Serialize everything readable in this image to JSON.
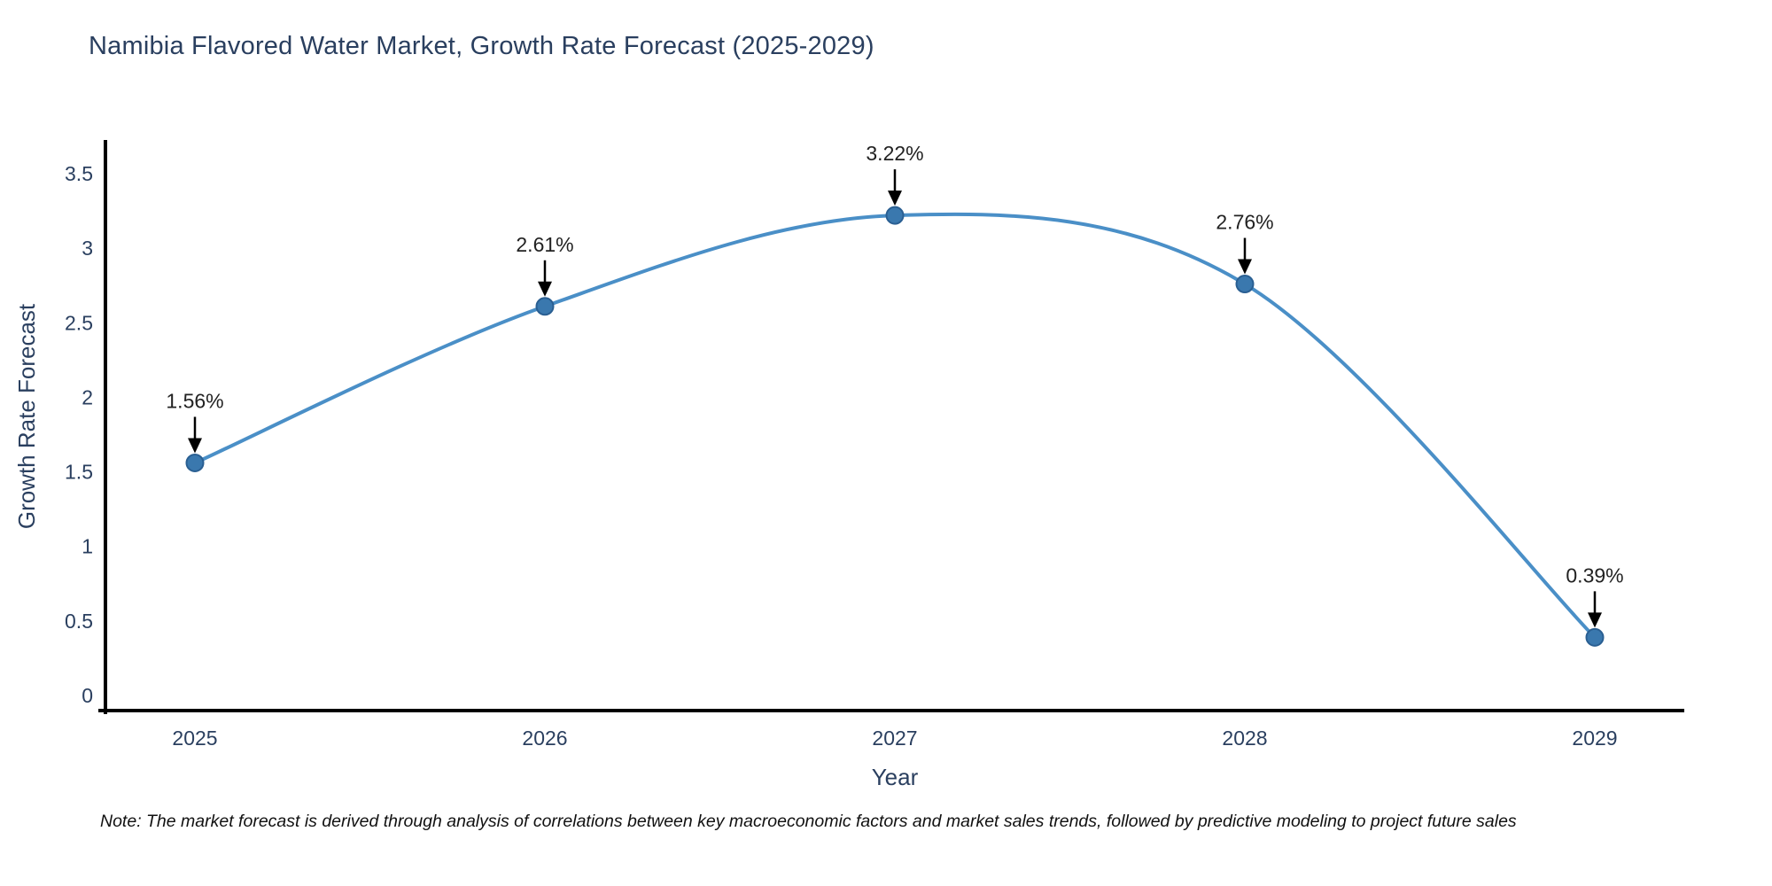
{
  "chart": {
    "note": "Note: The market forecast is derived through analysis of correlations between key macroeconomic factors and market sales trends, followed by predictive modeling to project future sales"
  },
  "chart_data": {
    "type": "line",
    "title": "Namibia Flavored Water Market, Growth Rate Forecast (2025-2029)",
    "x": [
      2025,
      2026,
      2027,
      2028,
      2029
    ],
    "categories": [
      "2025",
      "2026",
      "2027",
      "2028",
      "2029"
    ],
    "series": [
      {
        "name": "Growth Rate Forecast",
        "values": [
          1.56,
          2.61,
          3.22,
          2.76,
          0.39
        ],
        "point_labels": [
          "1.56%",
          "2.61%",
          "3.22%",
          "2.76%",
          "0.39%"
        ]
      }
    ],
    "xlabel": "Year",
    "ylabel": "Growth Rate Forecast",
    "ylim": [
      0,
      3.5
    ],
    "yticks": [
      "0",
      "0.5",
      "1",
      "1.5",
      "2",
      "2.5",
      "3",
      "3.5"
    ],
    "ytick_values": [
      0,
      0.5,
      1,
      1.5,
      2,
      2.5,
      3,
      3.5
    ],
    "line_shape": "spline",
    "grid": false,
    "legend_position": "none",
    "colors": {
      "line": "#4a8fc7",
      "marker_fill": "#3a78ae",
      "marker_edge": "#2a5f92",
      "axis_line": "#000000",
      "tick_text": "#2a3f5f",
      "annotation_text": "#222222",
      "arrow": "#000000"
    }
  }
}
